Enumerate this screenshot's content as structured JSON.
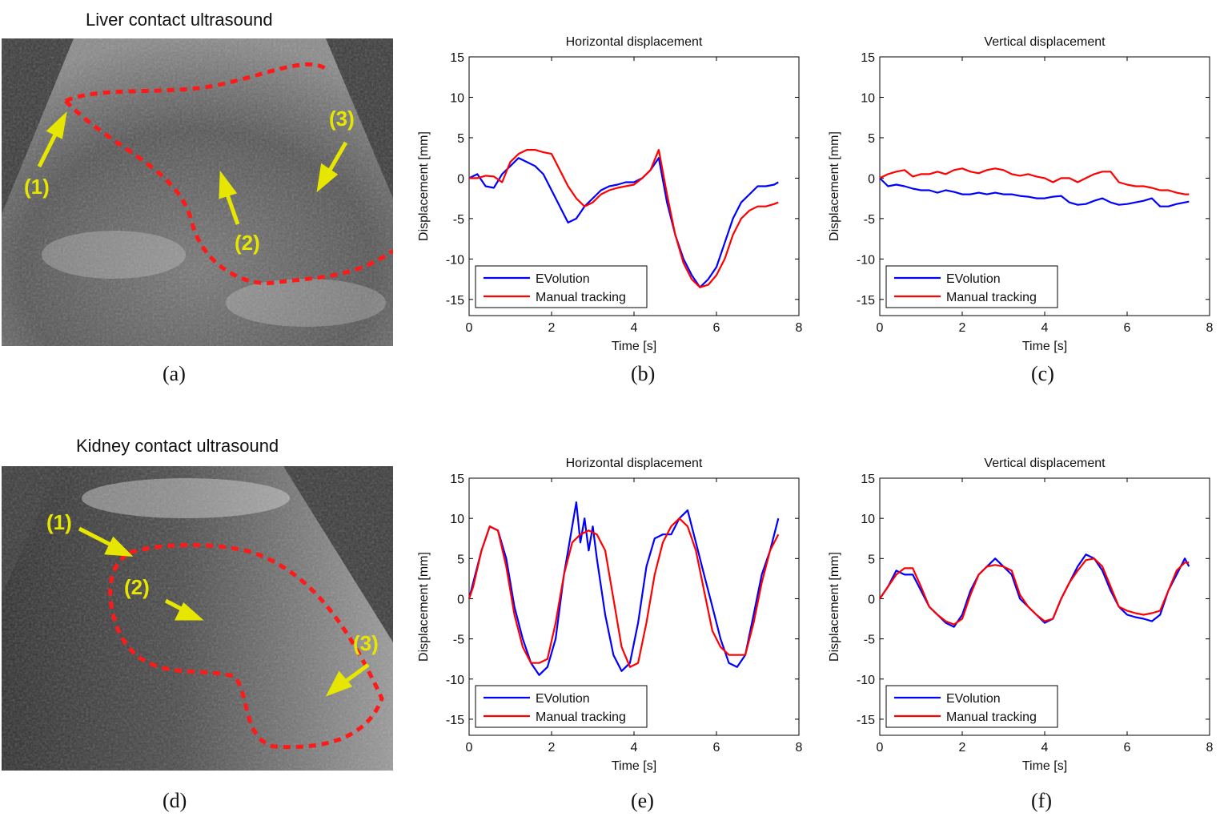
{
  "colors": {
    "evolution": "#0000ff",
    "manual": "#ff0000",
    "annotation": "#e6e600",
    "contour": "#ff1a1a"
  },
  "panels": {
    "a": {
      "label": "(a)",
      "title": "Liver contact ultrasound",
      "markers": [
        "(1)",
        "(2)",
        "(3)"
      ]
    },
    "b": {
      "label": "(b)"
    },
    "c": {
      "label": "(c)"
    },
    "d": {
      "label": "(d)",
      "title": "Kidney contact ultrasound",
      "markers": [
        "(1)",
        "(2)",
        "(3)"
      ]
    },
    "e": {
      "label": "(e)"
    },
    "f": {
      "label": "(f)"
    }
  },
  "chart_data": [
    {
      "id": "b",
      "type": "line",
      "title": "Horizontal displacement",
      "xlabel": "Time [s]",
      "ylabel": "Displacement [mm]",
      "xlim": [
        0,
        8
      ],
      "ylim": [
        -17,
        15
      ],
      "xticks": [
        0,
        2,
        4,
        6,
        8
      ],
      "yticks": [
        15,
        10,
        5,
        0,
        -5,
        -10,
        -15
      ],
      "legend": {
        "position": "bottom-left",
        "entries": [
          "EVolution",
          "Manual tracking"
        ]
      },
      "series": [
        {
          "name": "EVolution",
          "color": "#0000ff",
          "x": [
            0,
            0.2,
            0.4,
            0.6,
            0.8,
            1.0,
            1.2,
            1.4,
            1.6,
            1.8,
            2.0,
            2.2,
            2.4,
            2.6,
            2.8,
            3.0,
            3.2,
            3.4,
            3.6,
            3.8,
            4.0,
            4.2,
            4.4,
            4.6,
            4.8,
            5.0,
            5.2,
            5.4,
            5.6,
            5.8,
            6.0,
            6.2,
            6.4,
            6.6,
            6.8,
            7.0,
            7.2,
            7.4,
            7.5
          ],
          "y": [
            0,
            0.5,
            -1,
            -1.2,
            0.5,
            1.5,
            2.5,
            2,
            1.5,
            0.5,
            -1.5,
            -3.5,
            -5.5,
            -5,
            -3.5,
            -2.5,
            -1.5,
            -1,
            -0.8,
            -0.5,
            -0.5,
            0,
            1,
            2.5,
            -3,
            -7,
            -10,
            -12,
            -13.5,
            -12.5,
            -11,
            -8,
            -5,
            -3,
            -2,
            -1,
            -1,
            -0.8,
            -0.5
          ]
        },
        {
          "name": "Manual tracking",
          "color": "#ff0000",
          "x": [
            0,
            0.2,
            0.4,
            0.6,
            0.8,
            1.0,
            1.2,
            1.4,
            1.6,
            1.8,
            2.0,
            2.2,
            2.4,
            2.6,
            2.8,
            3.0,
            3.2,
            3.4,
            3.6,
            3.8,
            4.0,
            4.2,
            4.4,
            4.6,
            4.8,
            5.0,
            5.2,
            5.4,
            5.6,
            5.8,
            6.0,
            6.2,
            6.4,
            6.6,
            6.8,
            7.0,
            7.2,
            7.4,
            7.5
          ],
          "y": [
            0,
            0,
            0.3,
            0.2,
            -0.5,
            2,
            3,
            3.5,
            3.5,
            3.2,
            3,
            1,
            -1,
            -2.5,
            -3.5,
            -3,
            -2,
            -1.5,
            -1.2,
            -1,
            -0.8,
            0,
            1,
            3.5,
            -2,
            -7,
            -10.5,
            -12.5,
            -13.5,
            -13.2,
            -12,
            -10,
            -7,
            -5,
            -4,
            -3.5,
            -3.5,
            -3.2,
            -3
          ]
        }
      ]
    },
    {
      "id": "c",
      "type": "line",
      "title": "Vertical displacement",
      "xlabel": "Time [s]",
      "ylabel": "Displacement [mm]",
      "xlim": [
        0,
        8
      ],
      "ylim": [
        -17,
        15
      ],
      "xticks": [
        0,
        2,
        4,
        6,
        8
      ],
      "yticks": [
        15,
        10,
        5,
        0,
        -5,
        -10,
        -15
      ],
      "legend": {
        "position": "bottom-left",
        "entries": [
          "EVolution",
          "Manual tracking"
        ]
      },
      "series": [
        {
          "name": "EVolution",
          "color": "#0000ff",
          "x": [
            0,
            0.2,
            0.4,
            0.6,
            0.8,
            1.0,
            1.2,
            1.4,
            1.6,
            1.8,
            2.0,
            2.2,
            2.4,
            2.6,
            2.8,
            3.0,
            3.2,
            3.4,
            3.6,
            3.8,
            4.0,
            4.2,
            4.4,
            4.6,
            4.8,
            5.0,
            5.2,
            5.4,
            5.6,
            5.8,
            6.0,
            6.2,
            6.4,
            6.6,
            6.8,
            7.0,
            7.2,
            7.4,
            7.5
          ],
          "y": [
            0,
            -1,
            -0.8,
            -1,
            -1.3,
            -1.5,
            -1.5,
            -1.8,
            -1.5,
            -1.7,
            -2,
            -2,
            -1.8,
            -2,
            -1.8,
            -2,
            -2,
            -2.2,
            -2.3,
            -2.5,
            -2.5,
            -2.3,
            -2.2,
            -3,
            -3.3,
            -3.2,
            -2.8,
            -2.5,
            -3,
            -3.3,
            -3.2,
            -3,
            -2.8,
            -2.5,
            -3.5,
            -3.5,
            -3.2,
            -3,
            -2.9
          ]
        },
        {
          "name": "Manual tracking",
          "color": "#ff0000",
          "x": [
            0,
            0.2,
            0.4,
            0.6,
            0.8,
            1.0,
            1.2,
            1.4,
            1.6,
            1.8,
            2.0,
            2.2,
            2.4,
            2.6,
            2.8,
            3.0,
            3.2,
            3.4,
            3.6,
            3.8,
            4.0,
            4.2,
            4.4,
            4.6,
            4.8,
            5.0,
            5.2,
            5.4,
            5.6,
            5.8,
            6.0,
            6.2,
            6.4,
            6.6,
            6.8,
            7.0,
            7.2,
            7.4,
            7.5
          ],
          "y": [
            0,
            0.5,
            0.8,
            1,
            0.2,
            0.5,
            0.5,
            0.8,
            0.5,
            1,
            1.2,
            0.8,
            0.6,
            1,
            1.2,
            1,
            0.5,
            0.3,
            0.5,
            0.2,
            0,
            -0.5,
            0,
            0,
            -0.5,
            0,
            0.5,
            0.8,
            0.8,
            -0.5,
            -0.8,
            -1,
            -1,
            -1.2,
            -1.5,
            -1.5,
            -1.8,
            -2,
            -2
          ]
        }
      ]
    },
    {
      "id": "e",
      "type": "line",
      "title": "Horizontal displacement",
      "xlabel": "Time [s]",
      "ylabel": "Displacement [mm]",
      "xlim": [
        0,
        8
      ],
      "ylim": [
        -17,
        15
      ],
      "xticks": [
        0,
        2,
        4,
        6,
        8
      ],
      "yticks": [
        15,
        10,
        5,
        0,
        -5,
        -10,
        -15
      ],
      "legend": {
        "position": "bottom-left",
        "entries": [
          "EVolution",
          "Manual tracking"
        ]
      },
      "series": [
        {
          "name": "EVolution",
          "color": "#0000ff",
          "x": [
            0,
            0.1,
            0.3,
            0.5,
            0.7,
            0.9,
            1.1,
            1.3,
            1.5,
            1.7,
            1.9,
            2.1,
            2.3,
            2.5,
            2.6,
            2.7,
            2.8,
            2.9,
            3.0,
            3.1,
            3.3,
            3.5,
            3.7,
            3.9,
            4.1,
            4.3,
            4.5,
            4.7,
            4.9,
            5.1,
            5.3,
            5.5,
            5.7,
            5.9,
            6.1,
            6.3,
            6.5,
            6.7,
            6.9,
            7.1,
            7.3,
            7.5
          ],
          "y": [
            0,
            2,
            6,
            9,
            8.5,
            5,
            -1,
            -5,
            -8,
            -9.5,
            -8.5,
            -5,
            3,
            9,
            12,
            7,
            10,
            6,
            9,
            5,
            -2,
            -7,
            -9,
            -8,
            -3,
            4,
            7.5,
            8,
            8,
            10,
            11,
            7,
            3,
            -1,
            -5,
            -8,
            -8.5,
            -7,
            -2,
            3,
            6,
            10
          ]
        },
        {
          "name": "Manual tracking",
          "color": "#ff0000",
          "x": [
            0,
            0.1,
            0.3,
            0.5,
            0.7,
            0.9,
            1.1,
            1.3,
            1.5,
            1.7,
            1.9,
            2.1,
            2.3,
            2.5,
            2.7,
            2.9,
            3.1,
            3.3,
            3.5,
            3.7,
            3.9,
            4.1,
            4.3,
            4.5,
            4.7,
            4.9,
            5.1,
            5.3,
            5.5,
            5.7,
            5.9,
            6.1,
            6.3,
            6.5,
            6.7,
            6.9,
            7.1,
            7.3,
            7.5
          ],
          "y": [
            0,
            1.5,
            6,
            9,
            8.5,
            4,
            -2,
            -6,
            -8,
            -8,
            -7.5,
            -3,
            3,
            7,
            8,
            8.5,
            8,
            6,
            0,
            -6,
            -8.5,
            -8,
            -3,
            3,
            7,
            9,
            10,
            9,
            6,
            1,
            -4,
            -6,
            -7,
            -7,
            -7,
            -3,
            2,
            6,
            8
          ]
        }
      ]
    },
    {
      "id": "f",
      "type": "line",
      "title": "Vertical displacement",
      "xlabel": "Time [s]",
      "ylabel": "Displacement [mm]",
      "xlim": [
        0,
        8
      ],
      "ylim": [
        -17,
        15
      ],
      "xticks": [
        0,
        2,
        4,
        6,
        8
      ],
      "yticks": [
        15,
        10,
        5,
        0,
        -5,
        -10,
        -15
      ],
      "legend": {
        "position": "bottom-left",
        "entries": [
          "EVolution",
          "Manual tracking"
        ]
      },
      "series": [
        {
          "name": "EVolution",
          "color": "#0000ff",
          "x": [
            0,
            0.2,
            0.4,
            0.6,
            0.8,
            1.0,
            1.2,
            1.4,
            1.6,
            1.8,
            2.0,
            2.2,
            2.4,
            2.6,
            2.8,
            3.0,
            3.2,
            3.4,
            3.6,
            3.8,
            4.0,
            4.2,
            4.4,
            4.6,
            4.8,
            5.0,
            5.2,
            5.4,
            5.6,
            5.8,
            6.0,
            6.2,
            6.4,
            6.6,
            6.8,
            7.0,
            7.2,
            7.4,
            7.5
          ],
          "y": [
            0,
            1.5,
            3.5,
            3,
            3,
            1,
            -1,
            -2,
            -3,
            -3.5,
            -2,
            1,
            3,
            4,
            5,
            4,
            3,
            0,
            -1,
            -2,
            -3,
            -2.5,
            0,
            2,
            4,
            5.5,
            5,
            3.5,
            1,
            -1,
            -2,
            -2.3,
            -2.5,
            -2.8,
            -2,
            1,
            3,
            5,
            4
          ]
        },
        {
          "name": "Manual tracking",
          "color": "#ff0000",
          "x": [
            0,
            0.2,
            0.4,
            0.6,
            0.8,
            1.0,
            1.2,
            1.4,
            1.6,
            1.8,
            2.0,
            2.2,
            2.4,
            2.6,
            2.8,
            3.0,
            3.2,
            3.4,
            3.6,
            3.8,
            4.0,
            4.2,
            4.4,
            4.6,
            4.8,
            5.0,
            5.2,
            5.4,
            5.6,
            5.8,
            6.0,
            6.2,
            6.4,
            6.6,
            6.8,
            7.0,
            7.2,
            7.4,
            7.5
          ],
          "y": [
            0,
            1.5,
            3,
            3.8,
            3.8,
            1.5,
            -1,
            -2,
            -2.8,
            -3.2,
            -2.5,
            0.5,
            3,
            4,
            4.2,
            4,
            3.5,
            0.5,
            -1,
            -2,
            -2.8,
            -2.5,
            0,
            2,
            3.5,
            4.8,
            5,
            4,
            1.5,
            -1,
            -1.5,
            -1.8,
            -2,
            -1.8,
            -1.5,
            1,
            3.5,
            4.5,
            4.5
          ]
        }
      ]
    }
  ]
}
